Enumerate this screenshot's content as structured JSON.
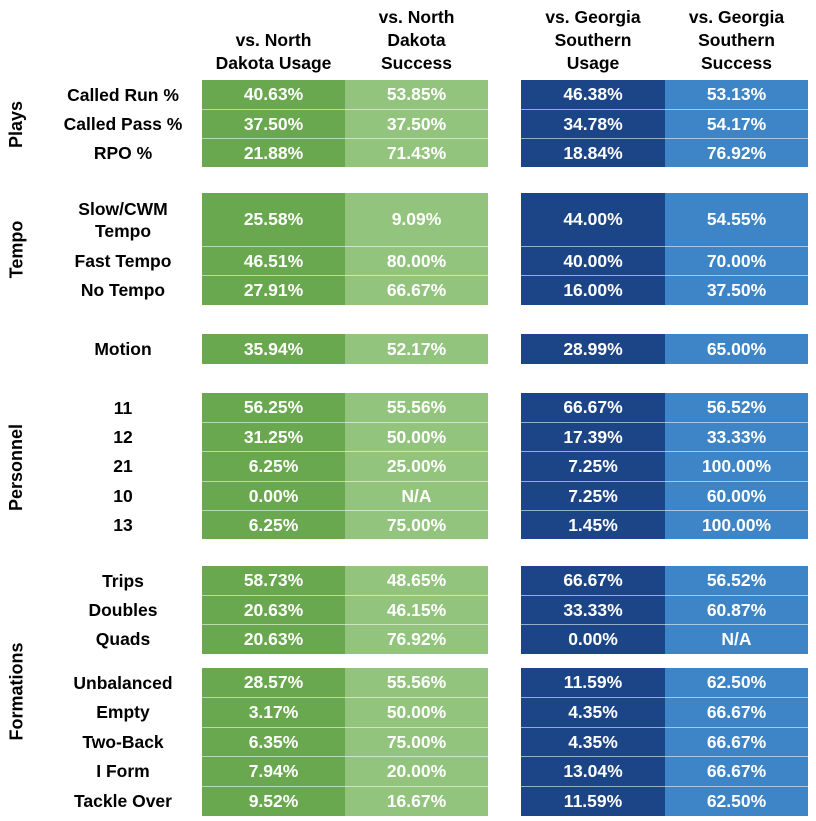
{
  "headers": {
    "nd_usage": [
      "vs. North",
      "Dakota Usage"
    ],
    "nd_success": [
      "vs. North",
      "Dakota",
      "Success"
    ],
    "gs_usage": [
      "vs. Georgia",
      "Southern",
      "Usage"
    ],
    "gs_success": [
      "vs. Georgia",
      "Southern",
      "Success"
    ]
  },
  "groups": {
    "plays": "Plays",
    "tempo": "Tempo",
    "personnel": "Personnel",
    "formations": "Formations"
  },
  "rows": [
    {
      "label": "Called Run %",
      "nd_usage": "40.63%",
      "nd_success": "53.85%",
      "gs_usage": "46.38%",
      "gs_success": "53.13%"
    },
    {
      "label": "Called Pass %",
      "nd_usage": "37.50%",
      "nd_success": "37.50%",
      "gs_usage": "34.78%",
      "gs_success": "54.17%"
    },
    {
      "label": "RPO %",
      "nd_usage": "21.88%",
      "nd_success": "71.43%",
      "gs_usage": "18.84%",
      "gs_success": "76.92%"
    },
    {
      "label": "Slow/CWM\nTempo",
      "nd_usage": "25.58%",
      "nd_success": "9.09%",
      "gs_usage": "44.00%",
      "gs_success": "54.55%"
    },
    {
      "label": "Fast Tempo",
      "nd_usage": "46.51%",
      "nd_success": "80.00%",
      "gs_usage": "40.00%",
      "gs_success": "70.00%"
    },
    {
      "label": "No Tempo",
      "nd_usage": "27.91%",
      "nd_success": "66.67%",
      "gs_usage": "16.00%",
      "gs_success": "37.50%"
    },
    {
      "label": "Motion",
      "nd_usage": "35.94%",
      "nd_success": "52.17%",
      "gs_usage": "28.99%",
      "gs_success": "65.00%"
    },
    {
      "label": "11",
      "nd_usage": "56.25%",
      "nd_success": "55.56%",
      "gs_usage": "66.67%",
      "gs_success": "56.52%"
    },
    {
      "label": "12",
      "nd_usage": "31.25%",
      "nd_success": "50.00%",
      "gs_usage": "17.39%",
      "gs_success": "33.33%"
    },
    {
      "label": "21",
      "nd_usage": "6.25%",
      "nd_success": "25.00%",
      "gs_usage": "7.25%",
      "gs_success": "100.00%"
    },
    {
      "label": "10",
      "nd_usage": "0.00%",
      "nd_success": "N/A",
      "gs_usage": "7.25%",
      "gs_success": "60.00%"
    },
    {
      "label": "13",
      "nd_usage": "6.25%",
      "nd_success": "75.00%",
      "gs_usage": "1.45%",
      "gs_success": "100.00%"
    },
    {
      "label": "Trips",
      "nd_usage": "58.73%",
      "nd_success": "48.65%",
      "gs_usage": "66.67%",
      "gs_success": "56.52%"
    },
    {
      "label": "Doubles",
      "nd_usage": "20.63%",
      "nd_success": "46.15%",
      "gs_usage": "33.33%",
      "gs_success": "60.87%"
    },
    {
      "label": "Quads",
      "nd_usage": "20.63%",
      "nd_success": "76.92%",
      "gs_usage": "0.00%",
      "gs_success": "N/A"
    },
    {
      "label": "Unbalanced",
      "nd_usage": "28.57%",
      "nd_success": "55.56%",
      "gs_usage": "11.59%",
      "gs_success": "62.50%"
    },
    {
      "label": "Empty",
      "nd_usage": "3.17%",
      "nd_success": "50.00%",
      "gs_usage": "4.35%",
      "gs_success": "66.67%"
    },
    {
      "label": "Two-Back",
      "nd_usage": "6.35%",
      "nd_success": "75.00%",
      "gs_usage": "4.35%",
      "gs_success": "66.67%"
    },
    {
      "label": "I Form",
      "nd_usage": "7.94%",
      "nd_success": "20.00%",
      "gs_usage": "13.04%",
      "gs_success": "66.67%"
    },
    {
      "label": "Tackle Over",
      "nd_usage": "9.52%",
      "nd_success": "16.67%",
      "gs_usage": "11.59%",
      "gs_success": "62.50%"
    }
  ],
  "colors": {
    "nd_usage": "#6aa84f",
    "nd_success": "#93c47d",
    "gs_usage": "#1c4587",
    "gs_success": "#3d85c6"
  }
}
